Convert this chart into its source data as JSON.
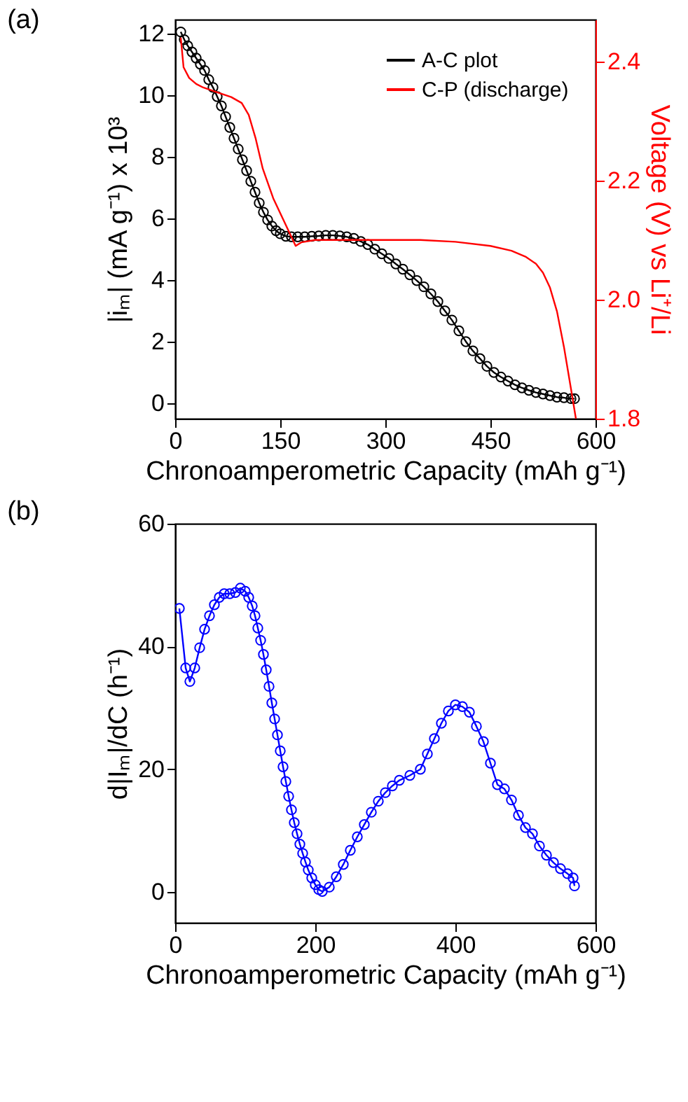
{
  "chart_data": [
    {
      "type": "line",
      "title": "(a)",
      "xlabel": "Chronoamperometric Capacity (mAh g⁻¹)",
      "ylabel": "|iₘ| (mA g⁻¹) x 10³",
      "y2label": "Voltage (V) vs Li⁺/Li",
      "xlim": [
        0,
        600
      ],
      "xticks": [
        0,
        150,
        300,
        450,
        600
      ],
      "ylim": [
        -0.5,
        12.45
      ],
      "yticks": [
        0,
        2,
        4,
        6,
        8,
        10,
        12
      ],
      "y2lim": [
        1.8,
        2.47
      ],
      "y2ticks": [
        {
          "value": 1.8,
          "label": "1.8"
        },
        {
          "value": 2.0,
          "label": "2.0"
        },
        {
          "value": 2.2,
          "label": "2.2"
        },
        {
          "value": 2.4,
          "label": "2.4"
        }
      ],
      "grid": false,
      "legend": "top right",
      "series": [
        {
          "name": "A-C plot",
          "color": "#000000",
          "marker": "circle",
          "x": [
            8,
            13,
            18,
            24,
            30,
            36,
            42,
            48,
            54,
            60,
            66,
            72,
            78,
            84,
            90,
            96,
            102,
            108,
            114,
            120,
            126,
            132,
            138,
            144,
            150,
            158,
            166,
            175,
            185,
            195,
            205,
            215,
            225,
            235,
            245,
            255,
            265,
            275,
            285,
            295,
            305,
            315,
            325,
            335,
            345,
            355,
            365,
            375,
            385,
            395,
            405,
            415,
            425,
            435,
            445,
            455,
            465,
            475,
            485,
            495,
            505,
            515,
            525,
            535,
            545,
            555,
            565,
            570
          ],
          "values": [
            12.05,
            11.8,
            11.6,
            11.4,
            11.2,
            11.0,
            10.8,
            10.5,
            10.25,
            9.95,
            9.65,
            9.3,
            8.95,
            8.6,
            8.25,
            7.9,
            7.55,
            7.2,
            6.85,
            6.5,
            6.2,
            5.95,
            5.75,
            5.6,
            5.5,
            5.42,
            5.4,
            5.4,
            5.4,
            5.42,
            5.43,
            5.45,
            5.45,
            5.43,
            5.4,
            5.35,
            5.25,
            5.15,
            5.0,
            4.85,
            4.7,
            4.52,
            4.35,
            4.17,
            3.98,
            3.78,
            3.55,
            3.3,
            3.0,
            2.7,
            2.35,
            2.0,
            1.7,
            1.45,
            1.2,
            1.0,
            0.85,
            0.72,
            0.6,
            0.5,
            0.42,
            0.35,
            0.3,
            0.25,
            0.2,
            0.18,
            0.15,
            0.15
          ]
        },
        {
          "name": "C-P (discharge)",
          "color": "#ff0000",
          "marker": "none",
          "axis": "y2",
          "x": [
            8,
            12,
            20,
            30,
            40,
            60,
            80,
            95,
            105,
            115,
            125,
            140,
            160,
            172,
            180,
            200,
            250,
            300,
            350,
            400,
            450,
            480,
            500,
            515,
            525,
            535,
            545,
            555,
            565,
            572
          ],
          "values": [
            2.44,
            2.39,
            2.372,
            2.362,
            2.356,
            2.348,
            2.34,
            2.33,
            2.31,
            2.27,
            2.22,
            2.17,
            2.12,
            2.09,
            2.096,
            2.1,
            2.1,
            2.1,
            2.1,
            2.097,
            2.09,
            2.082,
            2.072,
            2.06,
            2.045,
            2.02,
            1.98,
            1.92,
            1.85,
            1.8
          ]
        }
      ]
    },
    {
      "type": "line",
      "title": "(b)",
      "xlabel": "Chronoamperometric Capacity (mAh g⁻¹)",
      "ylabel": "d|Iₘ|/dC (h⁻¹)",
      "xlim": [
        0,
        600
      ],
      "xticks": [
        0,
        200,
        400,
        600
      ],
      "ylim": [
        -5,
        60
      ],
      "yticks": [
        0,
        20,
        40,
        60
      ],
      "grid": false,
      "legend": false,
      "series": [
        {
          "color": "#0000ff",
          "marker": "circle",
          "x": [
            6,
            15,
            21,
            28,
            35,
            42,
            49,
            56,
            63,
            70,
            78,
            86,
            93,
            100,
            105,
            110,
            114,
            118,
            122,
            126,
            130,
            134,
            138,
            142,
            146,
            150,
            154,
            158,
            162,
            166,
            170,
            174,
            178,
            182,
            186,
            190,
            195,
            200,
            205,
            210,
            220,
            230,
            240,
            250,
            260,
            270,
            280,
            290,
            300,
            310,
            320,
            335,
            350,
            360,
            370,
            380,
            390,
            400,
            410,
            420,
            430,
            440,
            450,
            460,
            470,
            480,
            490,
            500,
            510,
            520,
            530,
            540,
            550,
            560,
            568,
            570
          ],
          "values": [
            46.2,
            36.5,
            34.3,
            36.5,
            39.8,
            42.8,
            45.0,
            46.8,
            48.0,
            48.6,
            48.6,
            48.8,
            49.5,
            49.0,
            48.0,
            46.6,
            45.0,
            43.0,
            41.0,
            38.7,
            36.2,
            33.5,
            30.8,
            28.2,
            25.6,
            23.0,
            20.4,
            18.0,
            15.6,
            13.4,
            11.3,
            9.5,
            7.8,
            6.3,
            4.9,
            3.6,
            2.3,
            1.2,
            0.4,
            0.1,
            0.8,
            2.5,
            4.5,
            6.8,
            9.0,
            11.0,
            13.0,
            14.8,
            16.2,
            17.3,
            18.2,
            19.0,
            20.0,
            22.5,
            25.0,
            27.5,
            29.5,
            30.5,
            30.2,
            29.3,
            27.0,
            24.5,
            21.0,
            17.5,
            16.8,
            15.0,
            12.5,
            10.5,
            9.5,
            7.5,
            6.0,
            4.8,
            3.8,
            3.0,
            2.3,
            1.0
          ]
        }
      ]
    }
  ]
}
